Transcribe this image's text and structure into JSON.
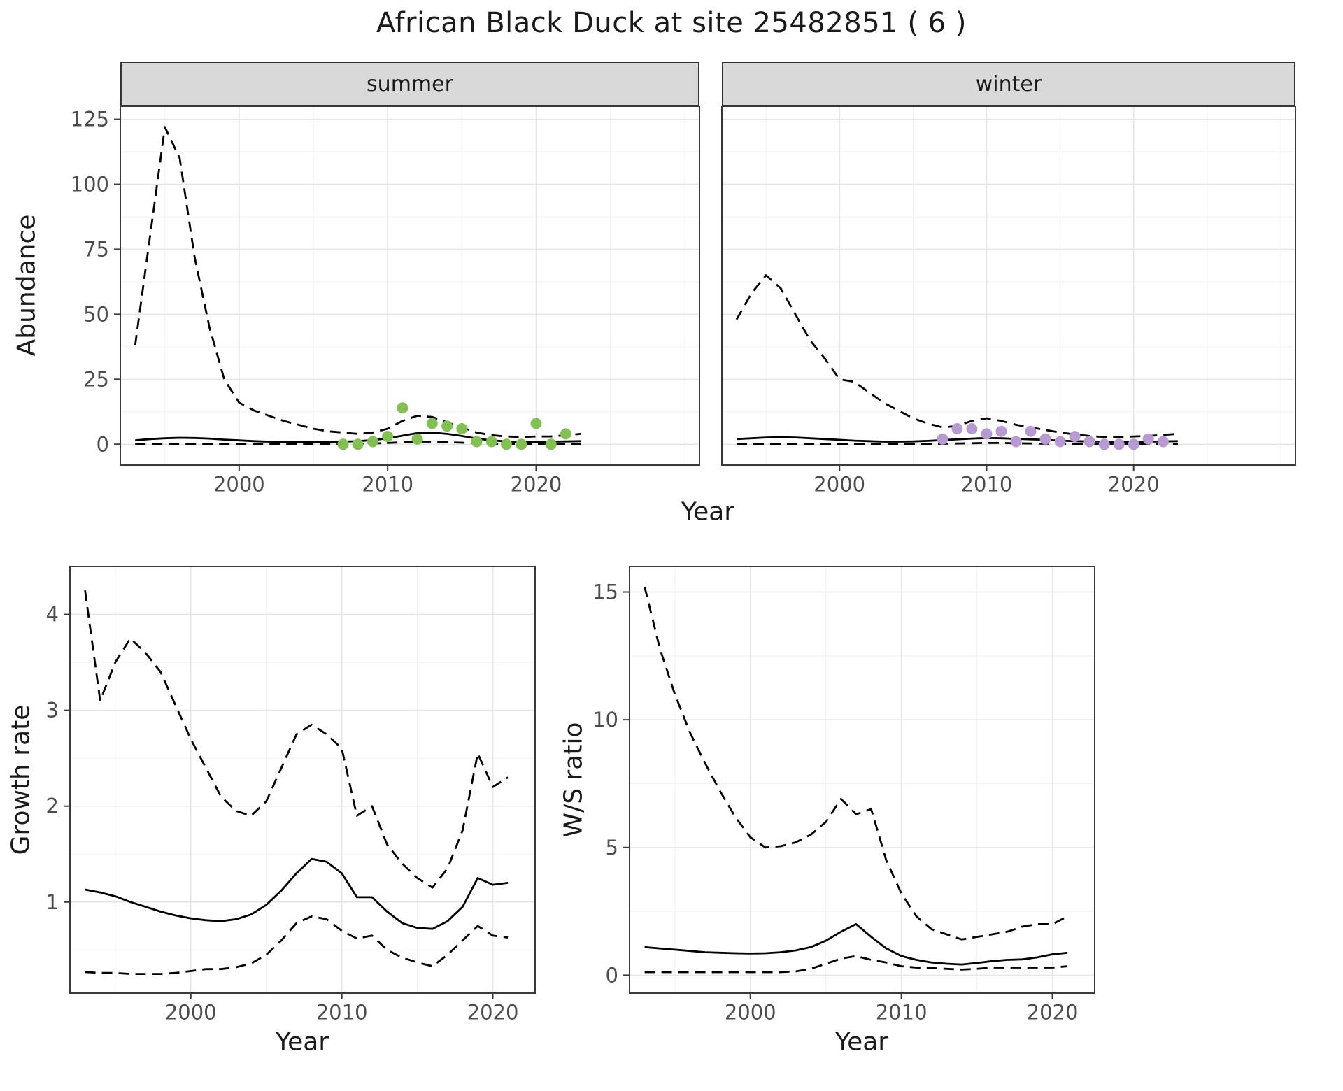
{
  "page": {
    "title": "African Black Duck at site 25482851 ( 6 )"
  },
  "colors": {
    "line": "#000000",
    "grid_major": "#e5e5e5",
    "grid_minor": "#f2f2f2",
    "panel_bg": "#ffffff",
    "panel_border": "#3a3a3a",
    "strip_bg": "#d9d9d9",
    "axis_text": "#4d4d4d",
    "summer_points": "#83c053",
    "winter_points": "#b79ad1"
  },
  "chart_data": [
    {
      "id": "abundance-summer",
      "type": "line",
      "facet_label": "summer",
      "xlabel": "Year",
      "ylabel": "Abundance",
      "xlim": [
        1992,
        2031
      ],
      "ylim": [
        -8,
        130
      ],
      "xticks": [
        2000,
        2010,
        2020
      ],
      "yticks": [
        0,
        25,
        50,
        75,
        100,
        125
      ],
      "xminor": [
        1995,
        2005,
        2015,
        2025,
        2030
      ],
      "yminor": [
        12.5,
        37.5,
        62.5,
        87.5,
        112.5
      ],
      "show_y_labels": true,
      "grid": true,
      "legend": "none",
      "x": [
        1993,
        1994,
        1995,
        1996,
        1997,
        1998,
        1999,
        2000,
        2001,
        2002,
        2003,
        2004,
        2005,
        2006,
        2007,
        2008,
        2009,
        2010,
        2011,
        2012,
        2013,
        2014,
        2015,
        2016,
        2017,
        2018,
        2019,
        2020,
        2021,
        2022,
        2023
      ],
      "series": [
        {
          "name": "upper-95ci",
          "style": "dashed",
          "values": [
            38,
            80,
            122,
            110,
            72,
            45,
            25,
            16,
            13,
            11,
            9,
            7.5,
            6,
            5,
            4.5,
            4,
            4.5,
            6,
            9,
            11,
            10.5,
            8.5,
            6.5,
            4.5,
            3.5,
            3,
            2.8,
            3,
            3,
            3.5,
            4
          ]
        },
        {
          "name": "estimate",
          "style": "solid",
          "values": [
            1.5,
            2,
            2.3,
            2.5,
            2.4,
            2.2,
            1.8,
            1.5,
            1.2,
            1,
            0.9,
            0.8,
            0.8,
            0.9,
            1,
            1.2,
            1.6,
            2.3,
            3.3,
            4.3,
            4.5,
            4,
            3.2,
            2.2,
            1.5,
            1.1,
            0.9,
            0.9,
            1,
            1.1,
            1.2
          ]
        },
        {
          "name": "lower-95ci",
          "style": "dashed",
          "values": [
            0.1,
            0.1,
            0.1,
            0.1,
            0.1,
            0.1,
            0.1,
            0.1,
            0.1,
            0.1,
            0.1,
            0.1,
            0.1,
            0.1,
            0.1,
            0.2,
            0.3,
            0.5,
            0.8,
            1,
            1,
            0.8,
            0.6,
            0.4,
            0.2,
            0.1,
            0.1,
            0.1,
            0.1,
            0.1,
            0.1
          ]
        }
      ],
      "points": {
        "name": "observed-counts-summer",
        "color": "#83c053",
        "x": [
          2007,
          2008,
          2009,
          2010,
          2011,
          2012,
          2013,
          2014,
          2015,
          2016,
          2017,
          2018,
          2019,
          2020,
          2021,
          2022
        ],
        "y": [
          0,
          0,
          1,
          3,
          14,
          2,
          8,
          7,
          6,
          1,
          1,
          0,
          0,
          8,
          0,
          4
        ]
      }
    },
    {
      "id": "abundance-winter",
      "type": "line",
      "facet_label": "winter",
      "xlabel": "Year",
      "ylabel": "Abundance",
      "xlim": [
        1992,
        2031
      ],
      "ylim": [
        -8,
        130
      ],
      "xticks": [
        2000,
        2010,
        2020
      ],
      "yticks": [
        0,
        25,
        50,
        75,
        100,
        125
      ],
      "xminor": [
        1995,
        2005,
        2015,
        2025,
        2030
      ],
      "yminor": [
        12.5,
        37.5,
        62.5,
        87.5,
        112.5
      ],
      "show_y_labels": false,
      "grid": true,
      "legend": "none",
      "x": [
        1993,
        1994,
        1995,
        1996,
        1997,
        1998,
        1999,
        2000,
        2001,
        2002,
        2003,
        2004,
        2005,
        2006,
        2007,
        2008,
        2009,
        2010,
        2011,
        2012,
        2013,
        2014,
        2015,
        2016,
        2017,
        2018,
        2019,
        2020,
        2021,
        2022,
        2023
      ],
      "series": [
        {
          "name": "upper-95ci",
          "style": "dashed",
          "values": [
            48,
            58,
            65,
            60,
            50,
            40,
            33,
            25,
            24,
            20,
            16,
            13,
            10,
            8,
            6.5,
            7,
            9,
            10,
            9,
            7.5,
            6.5,
            5.5,
            4.5,
            3.8,
            3.2,
            2.8,
            2.8,
            3,
            3.2,
            3.6,
            4
          ]
        },
        {
          "name": "estimate",
          "style": "solid",
          "values": [
            2,
            2.3,
            2.6,
            2.7,
            2.6,
            2.3,
            2,
            1.7,
            1.4,
            1.2,
            1,
            1,
            1.1,
            1.3,
            1.6,
            1.9,
            2.2,
            2.4,
            2.3,
            2.1,
            1.9,
            1.7,
            1.4,
            1.2,
            1.1,
            1,
            0.9,
            0.9,
            1,
            1.1,
            1.2
          ]
        },
        {
          "name": "lower-95ci",
          "style": "dashed",
          "values": [
            0.1,
            0.1,
            0.1,
            0.1,
            0.1,
            0.1,
            0.1,
            0.1,
            0.1,
            0.1,
            0.1,
            0.1,
            0.1,
            0.1,
            0.2,
            0.3,
            0.4,
            0.5,
            0.5,
            0.4,
            0.3,
            0.2,
            0.2,
            0.1,
            0.1,
            0.1,
            0.1,
            0.1,
            0.1,
            0.1,
            0.1
          ]
        }
      ],
      "points": {
        "name": "observed-counts-winter",
        "color": "#b79ad1",
        "x": [
          2007,
          2008,
          2009,
          2010,
          2011,
          2012,
          2013,
          2014,
          2015,
          2016,
          2017,
          2018,
          2019,
          2020,
          2021,
          2022
        ],
        "y": [
          2,
          6,
          6,
          4,
          5,
          1,
          5,
          2,
          1,
          3,
          1,
          0,
          0,
          0,
          2,
          1
        ]
      }
    },
    {
      "id": "growth-rate",
      "type": "line",
      "facet_label": "",
      "xlabel": "Year",
      "ylabel": "Growth rate",
      "xlim": [
        1992,
        2022.8
      ],
      "ylim": [
        0.05,
        4.5
      ],
      "xticks": [
        2000,
        2010,
        2020
      ],
      "yticks": [
        1,
        2,
        3,
        4
      ],
      "xminor": [
        1995,
        2005,
        2015
      ],
      "yminor": [
        0.5,
        1.5,
        2.5,
        3.5
      ],
      "show_y_labels": true,
      "grid": true,
      "legend": "none",
      "x": [
        1993,
        1994,
        1995,
        1996,
        1997,
        1998,
        1999,
        2000,
        2001,
        2002,
        2003,
        2004,
        2005,
        2006,
        2007,
        2008,
        2009,
        2010,
        2011,
        2012,
        2013,
        2014,
        2015,
        2016,
        2017,
        2018,
        2019,
        2020,
        2021
      ],
      "series": [
        {
          "name": "upper-95ci",
          "style": "dashed",
          "values": [
            4.25,
            3.1,
            3.5,
            3.75,
            3.6,
            3.4,
            3.05,
            2.7,
            2.4,
            2.1,
            1.95,
            1.9,
            2.05,
            2.4,
            2.75,
            2.85,
            2.75,
            2.6,
            1.9,
            2.0,
            1.6,
            1.4,
            1.25,
            1.15,
            1.35,
            1.75,
            2.55,
            2.2,
            2.3
          ]
        },
        {
          "name": "estimate",
          "style": "solid",
          "values": [
            1.13,
            1.1,
            1.06,
            1.0,
            0.95,
            0.9,
            0.86,
            0.83,
            0.81,
            0.8,
            0.82,
            0.87,
            0.97,
            1.12,
            1.3,
            1.45,
            1.42,
            1.3,
            1.05,
            1.05,
            0.9,
            0.78,
            0.73,
            0.72,
            0.8,
            0.95,
            1.25,
            1.18,
            1.2
          ]
        },
        {
          "name": "lower-95ci",
          "style": "dashed",
          "values": [
            0.27,
            0.26,
            0.26,
            0.25,
            0.25,
            0.25,
            0.26,
            0.28,
            0.3,
            0.3,
            0.32,
            0.36,
            0.45,
            0.6,
            0.78,
            0.85,
            0.82,
            0.7,
            0.62,
            0.65,
            0.5,
            0.42,
            0.37,
            0.33,
            0.45,
            0.6,
            0.75,
            0.65,
            0.63
          ]
        }
      ]
    },
    {
      "id": "ws-ratio",
      "type": "line",
      "facet_label": "",
      "xlabel": "Year",
      "ylabel": "W/S ratio",
      "xlim": [
        1992,
        2022.8
      ],
      "ylim": [
        -0.7,
        16
      ],
      "xticks": [
        2000,
        2010,
        2020
      ],
      "yticks": [
        0,
        5,
        10,
        15
      ],
      "xminor": [
        1995,
        2005,
        2015
      ],
      "yminor": [
        2.5,
        7.5,
        12.5
      ],
      "show_y_labels": true,
      "grid": true,
      "legend": "none",
      "x": [
        1993,
        1994,
        1995,
        1996,
        1997,
        1998,
        1999,
        2000,
        2001,
        2002,
        2003,
        2004,
        2005,
        2006,
        2007,
        2008,
        2009,
        2010,
        2011,
        2012,
        2013,
        2014,
        2015,
        2016,
        2017,
        2018,
        2019,
        2020,
        2021
      ],
      "series": [
        {
          "name": "upper-95ci",
          "style": "dashed",
          "values": [
            15.2,
            12.8,
            11.0,
            9.5,
            8.3,
            7.2,
            6.2,
            5.4,
            5.0,
            5.05,
            5.2,
            5.5,
            6.0,
            6.9,
            6.3,
            6.5,
            4.5,
            3.2,
            2.3,
            1.8,
            1.6,
            1.4,
            1.5,
            1.6,
            1.7,
            1.9,
            2.0,
            2.0,
            2.3
          ]
        },
        {
          "name": "estimate",
          "style": "solid",
          "values": [
            1.1,
            1.05,
            1.0,
            0.95,
            0.9,
            0.88,
            0.86,
            0.85,
            0.86,
            0.9,
            0.97,
            1.1,
            1.35,
            1.7,
            2.0,
            1.5,
            1.05,
            0.75,
            0.6,
            0.5,
            0.45,
            0.42,
            0.48,
            0.55,
            0.6,
            0.62,
            0.7,
            0.82,
            0.88
          ]
        },
        {
          "name": "lower-95ci",
          "style": "dashed",
          "values": [
            0.12,
            0.12,
            0.12,
            0.12,
            0.12,
            0.12,
            0.12,
            0.12,
            0.12,
            0.12,
            0.15,
            0.25,
            0.45,
            0.65,
            0.75,
            0.6,
            0.5,
            0.35,
            0.3,
            0.28,
            0.25,
            0.22,
            0.25,
            0.3,
            0.3,
            0.3,
            0.3,
            0.3,
            0.35
          ]
        }
      ]
    }
  ]
}
